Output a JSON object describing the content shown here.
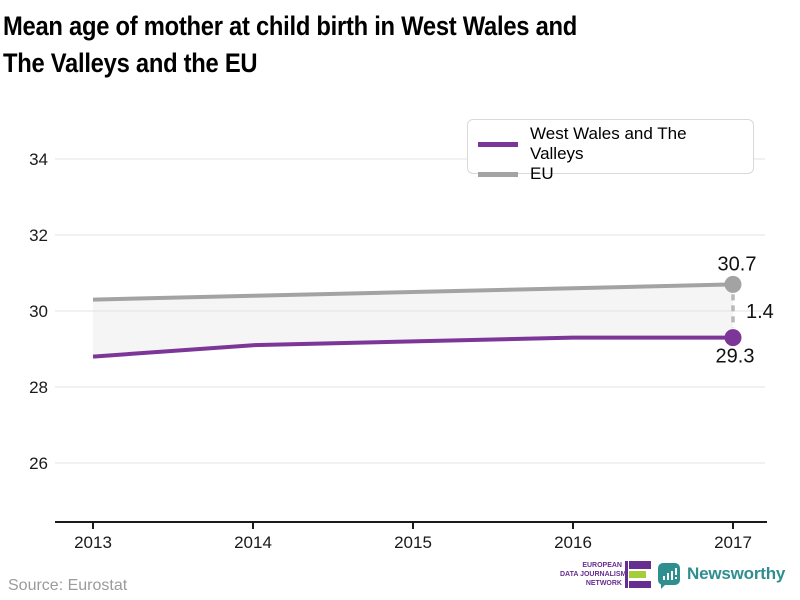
{
  "title_lines": [
    "Mean age of mother at child birth in West Wales and",
    "The Valleys and the EU"
  ],
  "chart_data": {
    "type": "line",
    "x": [
      2013,
      2014,
      2015,
      2016,
      2017
    ],
    "x_ticks": [
      "2013",
      "2014",
      "2015",
      "2016",
      "2017"
    ],
    "y_ticks": [
      26,
      28,
      30,
      32,
      34
    ],
    "ylim": [
      24.5,
      35.3
    ],
    "grid": "horizontal",
    "legend_position": "top-right",
    "series": [
      {
        "name": "West Wales and The Valleys",
        "color": "#7b3698",
        "values": [
          28.8,
          29.1,
          29.2,
          29.3,
          29.3
        ]
      },
      {
        "name": "EU",
        "color": "#a3a3a3",
        "values": [
          30.3,
          30.4,
          30.5,
          30.6,
          30.7
        ]
      }
    ],
    "band_fill": "#f5f5f5",
    "annotations": {
      "eu_end": "30.7",
      "wwv_end": "29.3",
      "gap": "1.4"
    }
  },
  "footer": {
    "source": "Source: Eurostat",
    "edjn_lines": [
      "EUROPEAN",
      "DATA JOURNALISM",
      "NETWORK"
    ],
    "newsworthy_label": "Newsworthy"
  },
  "colors": {
    "wwv_purple": "#7b3698",
    "eu_gray": "#a3a3a3",
    "grid_gray": "#e3e3e3",
    "axis_black": "#1a1a1a",
    "dash_gray": "#b8b8b8",
    "source_gray": "#9b9b9b",
    "edjn_purple": "#662e91",
    "edjn_green": "#a5cd39",
    "newsworthy_teal": "#2f8e8e"
  }
}
